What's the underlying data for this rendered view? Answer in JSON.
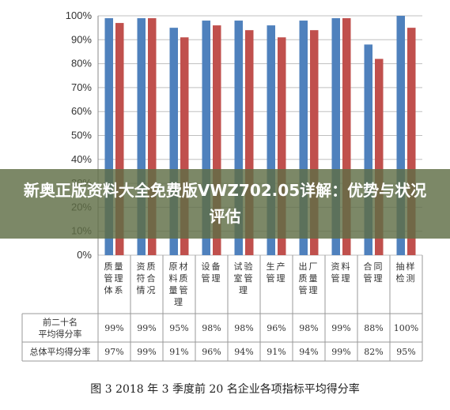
{
  "chart_data": {
    "type": "bar",
    "categories": [
      "质量管理体系",
      "资质符合情况",
      "原材料质量管理",
      "设备管理",
      "试验室管理",
      "生产管理",
      "出厂质量管理",
      "资料管理",
      "合同管理",
      "抽样检测"
    ],
    "categories_display": [
      [
        "质量",
        "管理",
        "体系"
      ],
      [
        "资质",
        "符合",
        "情况"
      ],
      [
        "原材",
        "料质",
        "量管",
        "理"
      ],
      [
        "设备",
        "管理"
      ],
      [
        "试验",
        "室管",
        "理"
      ],
      [
        "生产",
        "管理"
      ],
      [
        "出厂",
        "质量",
        "管理"
      ],
      [
        "资料",
        "管理"
      ],
      [
        "合同",
        "管理"
      ],
      [
        "抽样",
        "检测"
      ]
    ],
    "series": [
      {
        "name": "前二十名平均得分率",
        "name_lines": [
          "前二十名",
          "平均得分率"
        ],
        "values": [
          99,
          99,
          95,
          98,
          98,
          96,
          98,
          99,
          88,
          100
        ],
        "labels": [
          "99%",
          "99%",
          "95%",
          "98%",
          "98%",
          "96%",
          "98%",
          "99%",
          "88%",
          "100%"
        ],
        "color": "#4f81bd"
      },
      {
        "name": "总体平均得分率",
        "name_lines": [
          "总体平均得分率"
        ],
        "values": [
          97,
          99,
          91,
          96,
          94,
          91,
          94,
          99,
          82,
          95
        ],
        "labels": [
          "97%",
          "99%",
          "91%",
          "96%",
          "94%",
          "91%",
          "94%",
          "99%",
          "82%",
          "95%"
        ],
        "color": "#c0504d"
      }
    ],
    "ylim": [
      0,
      100
    ],
    "yticks": [
      "0%",
      "10%",
      "20%",
      "30%",
      "40%",
      "50%",
      "60%",
      "70%",
      "80%",
      "90%",
      "100%"
    ],
    "title": "",
    "xlabel": "",
    "ylabel": "",
    "legend": "data-table"
  },
  "overlay": {
    "title": "新奥正版资料大全免费版VWZ702.05详解：优势与状况评估"
  },
  "caption": "图 3  2018 年 3 季度前 20 名企业各项指标平均得分率"
}
